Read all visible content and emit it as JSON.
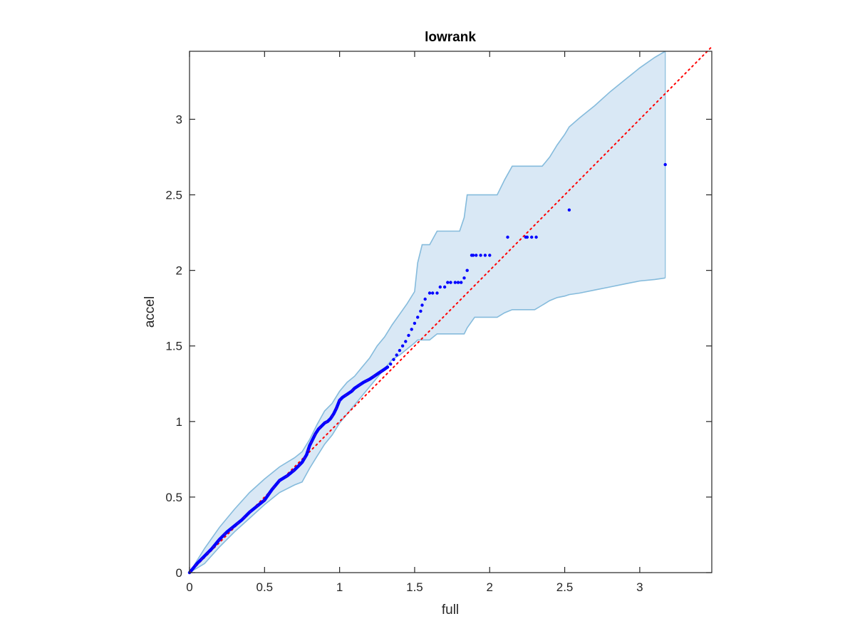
{
  "chart_data": {
    "type": "scatter",
    "title": "lowrank",
    "xlabel": "full",
    "ylabel": "accel",
    "xlim": [
      0,
      3.48
    ],
    "ylim": [
      0,
      3.45
    ],
    "xticks": [
      0,
      0.5,
      1,
      1.5,
      2,
      2.5,
      3
    ],
    "xtick_labels": [
      "0",
      "0.5",
      "1",
      "1.5",
      "2",
      "2.5",
      "3"
    ],
    "yticks": [
      0,
      0.5,
      1,
      1.5,
      2,
      2.5,
      3
    ],
    "ytick_labels": [
      "0",
      "0.5",
      "1",
      "1.5",
      "2",
      "2.5",
      "3"
    ],
    "grid": false,
    "colors": {
      "points": "#0000ff",
      "band_fill": "#d9e8f5",
      "band_edge": "#85bbdc",
      "reference_line": "#ff0000",
      "axes": "#262626"
    },
    "reference_line": {
      "style": "dotted",
      "x": [
        0,
        3.48
      ],
      "y": [
        0,
        3.48
      ]
    },
    "band": {
      "x": [
        0,
        0.1,
        0.2,
        0.3,
        0.4,
        0.5,
        0.6,
        0.7,
        0.75,
        0.8,
        0.85,
        0.9,
        0.95,
        1.0,
        1.05,
        1.1,
        1.15,
        1.2,
        1.25,
        1.3,
        1.35,
        1.4,
        1.45,
        1.5,
        1.52,
        1.55,
        1.57,
        1.6,
        1.65,
        1.7,
        1.75,
        1.8,
        1.83,
        1.85,
        1.9,
        1.95,
        2.0,
        2.05,
        2.1,
        2.15,
        2.2,
        2.25,
        2.3,
        2.35,
        2.4,
        2.45,
        2.5,
        2.53,
        2.6,
        2.7,
        2.8,
        2.9,
        3.0,
        3.1,
        3.17
      ],
      "upper": [
        0,
        0.16,
        0.3,
        0.42,
        0.53,
        0.62,
        0.7,
        0.76,
        0.8,
        0.88,
        0.98,
        1.07,
        1.12,
        1.2,
        1.26,
        1.3,
        1.36,
        1.42,
        1.5,
        1.56,
        1.64,
        1.71,
        1.78,
        1.86,
        2.05,
        2.17,
        2.17,
        2.17,
        2.26,
        2.26,
        2.26,
        2.26,
        2.35,
        2.5,
        2.5,
        2.5,
        2.5,
        2.5,
        2.6,
        2.69,
        2.69,
        2.69,
        2.69,
        2.69,
        2.75,
        2.83,
        2.9,
        2.95,
        3.01,
        3.09,
        3.18,
        3.26,
        3.34,
        3.41,
        3.45
      ],
      "lower": [
        0,
        0.06,
        0.17,
        0.27,
        0.36,
        0.45,
        0.53,
        0.58,
        0.6,
        0.69,
        0.77,
        0.85,
        0.91,
        0.99,
        1.05,
        1.11,
        1.17,
        1.23,
        1.29,
        1.35,
        1.41,
        1.44,
        1.48,
        1.52,
        1.54,
        1.54,
        1.54,
        1.54,
        1.58,
        1.58,
        1.58,
        1.58,
        1.58,
        1.62,
        1.69,
        1.69,
        1.69,
        1.69,
        1.72,
        1.74,
        1.74,
        1.74,
        1.74,
        1.77,
        1.8,
        1.82,
        1.83,
        1.84,
        1.85,
        1.87,
        1.89,
        1.91,
        1.93,
        1.94,
        1.95
      ]
    },
    "curve": {
      "x": [
        0,
        0.05,
        0.1,
        0.15,
        0.2,
        0.25,
        0.3,
        0.35,
        0.4,
        0.45,
        0.5,
        0.55,
        0.6,
        0.65,
        0.7,
        0.72,
        0.75,
        0.78,
        0.8,
        0.82,
        0.84,
        0.86,
        0.88,
        0.9,
        0.92,
        0.94,
        0.96,
        0.98,
        1.0,
        1.02,
        1.05,
        1.08,
        1.1,
        1.13,
        1.16,
        1.2,
        1.23,
        1.26,
        1.29,
        1.32
      ],
      "y": [
        0,
        0.06,
        0.11,
        0.16,
        0.22,
        0.27,
        0.31,
        0.35,
        0.4,
        0.44,
        0.48,
        0.55,
        0.61,
        0.64,
        0.68,
        0.7,
        0.73,
        0.78,
        0.84,
        0.88,
        0.92,
        0.95,
        0.97,
        0.99,
        1.0,
        1.02,
        1.05,
        1.09,
        1.14,
        1.16,
        1.18,
        1.2,
        1.22,
        1.24,
        1.26,
        1.28,
        1.3,
        1.32,
        1.34,
        1.36
      ]
    },
    "points": {
      "x": [
        1.34,
        1.36,
        1.38,
        1.4,
        1.42,
        1.44,
        1.46,
        1.48,
        1.5,
        1.52,
        1.54,
        1.55,
        1.57,
        1.6,
        1.62,
        1.65,
        1.67,
        1.7,
        1.72,
        1.74,
        1.77,
        1.79,
        1.81,
        1.83,
        1.85,
        1.88,
        1.89,
        1.91,
        1.94,
        1.97,
        2.0,
        2.12,
        2.24,
        2.25,
        2.28,
        2.31,
        2.53,
        3.17
      ],
      "y": [
        1.38,
        1.41,
        1.44,
        1.47,
        1.5,
        1.53,
        1.57,
        1.61,
        1.65,
        1.69,
        1.73,
        1.77,
        1.81,
        1.85,
        1.85,
        1.85,
        1.89,
        1.89,
        1.92,
        1.92,
        1.92,
        1.92,
        1.92,
        1.95,
        2.0,
        2.1,
        2.1,
        2.1,
        2.1,
        2.1,
        2.1,
        2.22,
        2.22,
        2.22,
        2.22,
        2.22,
        2.4,
        2.7
      ]
    }
  }
}
